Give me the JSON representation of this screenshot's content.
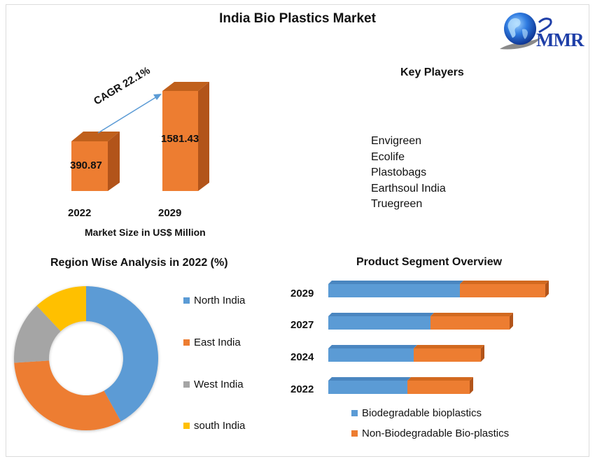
{
  "title": "India Bio Plastics Market",
  "logo": {
    "text": "MMR",
    "icon": "globe-icon"
  },
  "colors": {
    "blue": "#5B9BD5",
    "orange": "#ED7D31",
    "orange_dark": "#C0601C",
    "gray": "#A5A5A5",
    "yellow": "#FFC000",
    "logo_blue": "#1F3FA8"
  },
  "key_players": {
    "heading": "Key Players",
    "items": [
      "Envigreen",
      "Ecolife",
      "Plastobags",
      "Earthsoul India",
      "Truegreen"
    ]
  },
  "chart_data": [
    {
      "type": "bar",
      "title": "",
      "categories": [
        "2022",
        "2029"
      ],
      "values": [
        390.87,
        1581.43
      ],
      "value_labels": [
        "390.87",
        "1581.43"
      ],
      "xlabel": "Market Size in US$ Million",
      "ylabel": "",
      "annotation": "CAGR 22.1%",
      "grid": false,
      "style": "3d-column"
    },
    {
      "type": "pie",
      "title": "Region Wise Analysis in 2022 (%)",
      "donut": true,
      "categories": [
        "North India",
        "East India",
        "West India",
        "south India"
      ],
      "values": [
        42,
        32,
        14,
        12
      ],
      "legend_position": "right"
    },
    {
      "type": "bar",
      "orientation": "horizontal",
      "stacked": true,
      "title": "Product Segment Overview",
      "categories": [
        "2029",
        "2027",
        "2024",
        "2022"
      ],
      "series": [
        {
          "name": "Biodegradable bioplastics",
          "values": [
            188,
            146,
            122,
            113
          ]
        },
        {
          "name": "Non-Biodegradable Bio-plastics",
          "values": [
            122,
            113,
            96,
            89
          ]
        }
      ],
      "value_unit": "relative (no axis shown)",
      "legend_position": "bottom",
      "grid": false,
      "style": "3d-bar"
    }
  ],
  "market_size": {
    "years": [
      "2022",
      "2029"
    ],
    "values": [
      "390.87",
      "1581.43"
    ],
    "cagr": "CAGR 22.1%",
    "axis_label": "Market Size in US$ Million"
  },
  "region": {
    "title": "Region Wise Analysis in 2022 (%)",
    "legend": [
      "North India",
      "East India",
      "West India",
      "south India"
    ]
  },
  "segment": {
    "title": "Product Segment Overview",
    "years": [
      "2029",
      "2027",
      "2024",
      "2022"
    ],
    "legend": [
      "Biodegradable bioplastics",
      "Non-Biodegradable Bio-plastics"
    ]
  }
}
